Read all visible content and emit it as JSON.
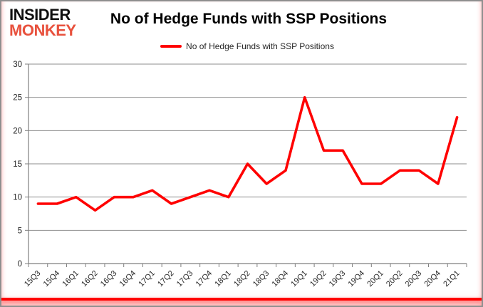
{
  "branding": {
    "logo_line1": "INSIDER",
    "logo_line2": "MONKEY",
    "logo_line1_color": "#111111",
    "logo_line2_color": "#e8513d"
  },
  "header": {
    "title": "No of Hedge Funds with SSP Positions"
  },
  "legend": {
    "label": "No of Hedge Funds with SSP Positions",
    "swatch_color": "#ff0000"
  },
  "chart_data": {
    "type": "line",
    "title": "No of Hedge Funds with SSP Positions",
    "categories": [
      "15Q3",
      "15Q4",
      "16Q1",
      "16Q2",
      "16Q3",
      "16Q4",
      "17Q1",
      "17Q2",
      "17Q3",
      "17Q4",
      "18Q1",
      "18Q2",
      "18Q3",
      "18Q4",
      "19Q1",
      "19Q2",
      "19Q3",
      "19Q4",
      "20Q1",
      "20Q2",
      "20Q3",
      "20Q4",
      "21Q1"
    ],
    "series": [
      {
        "name": "No of Hedge Funds with SSP Positions",
        "color": "#ff0000",
        "values": [
          9,
          9,
          10,
          8,
          10,
          10,
          11,
          9,
          10,
          11,
          10,
          15,
          12,
          14,
          25,
          17,
          17,
          12,
          12,
          14,
          14,
          12,
          22
        ]
      }
    ],
    "xlabel": "",
    "ylabel": "",
    "ylim": [
      0,
      30
    ],
    "ytick_step": 5,
    "yticks": [
      0,
      5,
      10,
      15,
      20,
      25,
      30
    ],
    "grid": true,
    "legend_position": "top",
    "gridline_color": "#8e8e8e",
    "axis_color": "#7f7f7f",
    "tick_label_color": "#262626"
  }
}
